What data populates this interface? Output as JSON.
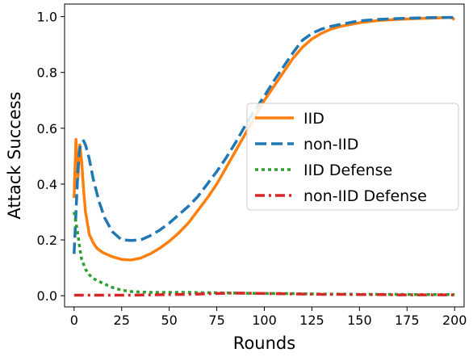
{
  "chart_data": {
    "type": "line",
    "xlabel": "Rounds",
    "ylabel": "Attack Success",
    "xlim": [
      -5,
      205
    ],
    "ylim": [
      -0.04,
      1.045
    ],
    "xticks": [
      0,
      25,
      50,
      75,
      100,
      125,
      150,
      175,
      200
    ],
    "yticks": [
      0.0,
      0.2,
      0.4,
      0.6,
      0.8,
      1.0
    ],
    "legend_position": "center-right",
    "grid": false,
    "series": [
      {
        "name": "IID",
        "color": "#ff7f0e",
        "style": "solid",
        "x": [
          0,
          1,
          2,
          3,
          4,
          5,
          6,
          8,
          10,
          12,
          15,
          20,
          25,
          30,
          35,
          40,
          45,
          50,
          55,
          60,
          65,
          70,
          75,
          80,
          85,
          90,
          95,
          100,
          105,
          110,
          115,
          120,
          125,
          130,
          135,
          140,
          150,
          160,
          170,
          180,
          190,
          198,
          200
        ],
        "y": [
          0.35,
          0.56,
          0.42,
          0.54,
          0.48,
          0.38,
          0.3,
          0.22,
          0.19,
          0.17,
          0.155,
          0.14,
          0.13,
          0.128,
          0.135,
          0.15,
          0.17,
          0.195,
          0.225,
          0.26,
          0.305,
          0.35,
          0.4,
          0.46,
          0.52,
          0.58,
          0.64,
          0.7,
          0.75,
          0.8,
          0.85,
          0.89,
          0.92,
          0.94,
          0.955,
          0.965,
          0.978,
          0.986,
          0.99,
          0.993,
          0.995,
          0.997,
          0.99
        ]
      },
      {
        "name": "non-IID",
        "color": "#1f77b4",
        "style": "dashed",
        "x": [
          0,
          1,
          2,
          3,
          4,
          5,
          6,
          8,
          10,
          13,
          16,
          20,
          25,
          30,
          35,
          40,
          45,
          50,
          55,
          60,
          65,
          70,
          75,
          80,
          85,
          90,
          95,
          100,
          105,
          110,
          115,
          120,
          125,
          130,
          135,
          140,
          150,
          160,
          170,
          180,
          190,
          200
        ],
        "y": [
          0.15,
          0.3,
          0.45,
          0.53,
          0.55,
          0.555,
          0.54,
          0.49,
          0.42,
          0.34,
          0.28,
          0.23,
          0.2,
          0.198,
          0.2,
          0.215,
          0.235,
          0.26,
          0.29,
          0.32,
          0.355,
          0.4,
          0.445,
          0.495,
          0.55,
          0.61,
          0.665,
          0.715,
          0.77,
          0.82,
          0.87,
          0.915,
          0.94,
          0.955,
          0.965,
          0.972,
          0.985,
          0.99,
          0.993,
          0.995,
          0.997,
          0.997
        ]
      },
      {
        "name": "IID Defense",
        "color": "#2ca02c",
        "style": "dotted",
        "x": [
          0,
          1,
          2,
          3,
          4,
          6,
          8,
          10,
          15,
          20,
          25,
          30,
          40,
          50,
          60,
          70,
          80,
          90,
          100,
          110,
          120,
          130,
          140,
          150,
          160,
          170,
          180,
          190,
          200
        ],
        "y": [
          0.3,
          0.26,
          0.22,
          0.17,
          0.13,
          0.095,
          0.075,
          0.062,
          0.045,
          0.03,
          0.02,
          0.015,
          0.012,
          0.012,
          0.012,
          0.011,
          0.01,
          0.009,
          0.008,
          0.008,
          0.007,
          0.006,
          0.006,
          0.005,
          0.005,
          0.005,
          0.004,
          0.004,
          0.004
        ]
      },
      {
        "name": "non-IID Defense",
        "color": "#d62728",
        "style": "dashdot",
        "x": [
          0,
          5,
          10,
          20,
          30,
          40,
          50,
          60,
          70,
          80,
          90,
          100,
          110,
          120,
          130,
          140,
          150,
          160,
          170,
          180,
          190,
          200
        ],
        "y": [
          0.002,
          0.002,
          0.002,
          0.002,
          0.002,
          0.003,
          0.004,
          0.005,
          0.007,
          0.009,
          0.009,
          0.008,
          0.007,
          0.006,
          0.005,
          0.005,
          0.004,
          0.004,
          0.003,
          0.003,
          0.003,
          0.003
        ]
      }
    ]
  }
}
